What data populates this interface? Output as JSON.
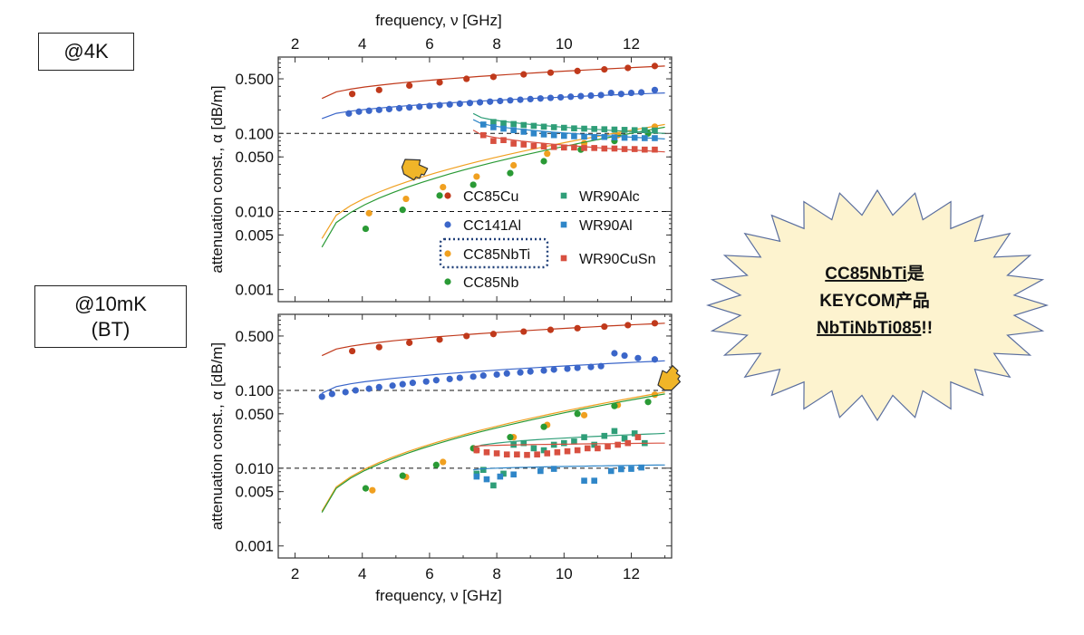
{
  "labels": {
    "top_condition": "@4K",
    "bottom_condition_line1": "@10mK",
    "bottom_condition_line2": "(BT)"
  },
  "callout": {
    "line1_product": "CC85NbTi",
    "line1_suffix": "是",
    "line2": "KEYCOM产品",
    "line3_part": "NbTiNbTi085",
    "line3_suffix": "!!"
  },
  "colors": {
    "CC85Cu": "#c0391b",
    "CC141Al": "#3b66c9",
    "CC85NbTi": "#f0a020",
    "CC85Nb": "#2a9a35",
    "WR90Alc": "#2f9e78",
    "WR90Al": "#2f86c8",
    "WR90CuSn": "#d85040",
    "burst_fill": "#fdf3cf",
    "burst_stroke": "#5a6e9e",
    "pointer_fill": "#f0b528"
  },
  "chart_data": [
    {
      "type": "scatter",
      "panel": "@4K",
      "xlabel_top": "frequency, ν [GHz]",
      "ylabel": "attenuation const., α [dB/m]",
      "x_ticks": [
        "2",
        "4",
        "6",
        "8",
        "10",
        "12"
      ],
      "y_ticks": [
        "0.001",
        "0.005",
        "0.010",
        "0.050",
        "0.100",
        "0.500"
      ],
      "xlim": [
        1.5,
        13.2
      ],
      "ylim": [
        0.0007,
        0.95
      ],
      "y_scale": "log",
      "reference_lines": [
        0.1,
        0.01
      ],
      "legend": {
        "placement": "inside-lower-center",
        "entries": [
          "CC85Cu",
          "CC141Al",
          "CC85NbTi",
          "CC85Nb",
          "WR90Alc",
          "WR90Al",
          "WR90CuSn"
        ],
        "highlighted": "CC85NbTi"
      },
      "series": [
        {
          "name": "CC85Cu",
          "marker": "circle",
          "x": [
            3.7,
            4.5,
            5.4,
            6.3,
            7.1,
            7.9,
            8.8,
            9.6,
            10.4,
            11.2,
            11.9,
            12.7
          ],
          "y": [
            0.32,
            0.36,
            0.41,
            0.45,
            0.5,
            0.53,
            0.57,
            0.6,
            0.63,
            0.66,
            0.69,
            0.73
          ],
          "fit_x": [
            2.8,
            13.0
          ],
          "fit_y": [
            0.28,
            0.73
          ]
        },
        {
          "name": "CC141Al",
          "marker": "circle",
          "x": [
            3.6,
            3.9,
            4.2,
            4.5,
            4.8,
            5.1,
            5.4,
            5.7,
            6.0,
            6.3,
            6.6,
            6.9,
            7.2,
            7.5,
            7.8,
            8.1,
            8.4,
            8.7,
            9.0,
            9.3,
            9.6,
            9.9,
            10.2,
            10.5,
            10.8,
            11.1,
            11.4,
            11.7,
            12.0,
            12.3,
            12.7
          ],
          "y": [
            0.18,
            0.19,
            0.195,
            0.2,
            0.205,
            0.21,
            0.215,
            0.22,
            0.225,
            0.23,
            0.235,
            0.24,
            0.245,
            0.25,
            0.255,
            0.26,
            0.265,
            0.27,
            0.275,
            0.28,
            0.285,
            0.29,
            0.295,
            0.3,
            0.305,
            0.31,
            0.33,
            0.32,
            0.33,
            0.335,
            0.36
          ],
          "fit_x": [
            2.8,
            13.0
          ],
          "fit_y": [
            0.155,
            0.33
          ]
        },
        {
          "name": "CC85NbTi",
          "marker": "circle",
          "x": [
            4.2,
            5.3,
            6.4,
            7.4,
            8.5,
            9.5,
            10.6,
            11.6,
            12.7
          ],
          "y": [
            0.0095,
            0.0145,
            0.0205,
            0.028,
            0.039,
            0.055,
            0.075,
            0.095,
            0.122
          ],
          "fit_x": [
            2.8,
            13.0
          ],
          "fit_y": [
            0.0045,
            0.13
          ]
        },
        {
          "name": "CC85Nb",
          "marker": "circle",
          "x": [
            4.1,
            5.2,
            6.3,
            7.3,
            8.4,
            9.4,
            10.5,
            11.5,
            12.5
          ],
          "y": [
            0.006,
            0.0105,
            0.016,
            0.022,
            0.031,
            0.044,
            0.062,
            0.08,
            0.1
          ],
          "fit_x": [
            2.8,
            13.0
          ],
          "fit_y": [
            0.0035,
            0.12
          ]
        },
        {
          "name": "WR90Alc",
          "marker": "square",
          "x": [
            7.9,
            8.2,
            8.5,
            8.8,
            9.1,
            9.4,
            9.7,
            10.0,
            10.3,
            10.6,
            10.9,
            11.2,
            11.5,
            11.8,
            12.1,
            12.4,
            12.7
          ],
          "y": [
            0.14,
            0.135,
            0.132,
            0.128,
            0.125,
            0.122,
            0.12,
            0.118,
            0.116,
            0.115,
            0.114,
            0.113,
            0.112,
            0.111,
            0.11,
            0.11,
            0.109
          ],
          "fit_x": [
            7.3,
            13.0
          ],
          "fit_y": [
            0.18,
            0.1
          ]
        },
        {
          "name": "WR90Al",
          "marker": "square",
          "x": [
            7.6,
            7.9,
            8.2,
            8.5,
            8.8,
            9.1,
            9.4,
            9.7,
            10.0,
            10.3,
            10.6,
            10.9,
            11.2,
            11.5,
            11.8,
            12.1,
            12.4,
            12.7
          ],
          "y": [
            0.13,
            0.12,
            0.115,
            0.11,
            0.105,
            0.1,
            0.097,
            0.095,
            0.093,
            0.092,
            0.091,
            0.09,
            0.09,
            0.089,
            0.088,
            0.088,
            0.087,
            0.087
          ],
          "fit_x": [
            7.3,
            13.0
          ],
          "fit_y": [
            0.15,
            0.085
          ]
        },
        {
          "name": "WR90CuSn",
          "marker": "square",
          "x": [
            7.6,
            7.9,
            8.2,
            8.5,
            8.8,
            9.1,
            9.4,
            9.7,
            10.0,
            10.3,
            10.6,
            10.9,
            11.2,
            11.5,
            11.8,
            12.1,
            12.4,
            12.7
          ],
          "y": [
            0.095,
            0.08,
            0.082,
            0.074,
            0.072,
            0.069,
            0.068,
            0.067,
            0.066,
            0.066,
            0.065,
            0.065,
            0.064,
            0.064,
            0.063,
            0.063,
            0.062,
            0.062
          ],
          "fit_x": [
            7.3,
            13.0
          ],
          "fit_y": [
            0.11,
            0.058
          ]
        }
      ]
    },
    {
      "type": "scatter",
      "panel": "@10mK (BT)",
      "xlabel": "frequency, ν [GHz]",
      "ylabel": "attenuation const., α [dB/m]",
      "x_ticks": [
        "2",
        "4",
        "6",
        "8",
        "10",
        "12"
      ],
      "y_ticks": [
        "0.001",
        "0.005",
        "0.010",
        "0.050",
        "0.100",
        "0.500"
      ],
      "xlim": [
        1.5,
        13.2
      ],
      "ylim": [
        0.0007,
        0.95
      ],
      "y_scale": "log",
      "reference_lines": [
        0.1,
        0.01
      ],
      "series": [
        {
          "name": "CC85Cu",
          "marker": "circle",
          "x": [
            3.7,
            4.5,
            5.4,
            6.3,
            7.1,
            7.9,
            8.8,
            9.6,
            10.4,
            11.2,
            11.9,
            12.7
          ],
          "y": [
            0.32,
            0.36,
            0.41,
            0.45,
            0.5,
            0.53,
            0.57,
            0.6,
            0.63,
            0.66,
            0.69,
            0.73
          ],
          "fit_x": [
            2.8,
            13.0
          ],
          "fit_y": [
            0.28,
            0.73
          ]
        },
        {
          "name": "CC141Al",
          "marker": "circle",
          "x": [
            2.8,
            3.1,
            3.5,
            3.8,
            4.2,
            4.5,
            4.9,
            5.2,
            5.5,
            5.9,
            6.2,
            6.6,
            6.9,
            7.3,
            7.6,
            8.0,
            8.3,
            8.7,
            9.0,
            9.4,
            9.7,
            10.1,
            10.4,
            10.8,
            11.1,
            11.5,
            11.8,
            12.2,
            12.7
          ],
          "y": [
            0.083,
            0.09,
            0.095,
            0.1,
            0.105,
            0.11,
            0.115,
            0.12,
            0.125,
            0.13,
            0.135,
            0.14,
            0.145,
            0.15,
            0.155,
            0.16,
            0.165,
            0.17,
            0.175,
            0.18,
            0.185,
            0.19,
            0.195,
            0.2,
            0.205,
            0.3,
            0.28,
            0.26,
            0.25
          ],
          "fit_x": [
            2.8,
            13.0
          ],
          "fit_y": [
            0.092,
            0.24
          ]
        },
        {
          "name": "CC85NbTi",
          "marker": "circle",
          "x": [
            4.3,
            5.3,
            6.4,
            7.4,
            8.5,
            9.5,
            10.6,
            11.6,
            12.7
          ],
          "y": [
            0.0052,
            0.0077,
            0.012,
            0.017,
            0.025,
            0.036,
            0.048,
            0.065,
            0.088
          ],
          "fit_x": [
            2.8,
            13.0
          ],
          "fit_y": [
            0.0028,
            0.095
          ]
        },
        {
          "name": "CC85Nb",
          "marker": "circle",
          "x": [
            4.1,
            5.2,
            6.2,
            7.3,
            8.4,
            9.4,
            10.4,
            11.5,
            12.5
          ],
          "y": [
            0.0055,
            0.008,
            0.011,
            0.018,
            0.025,
            0.034,
            0.05,
            0.063,
            0.071
          ],
          "fit_x": [
            2.8,
            13.0
          ],
          "fit_y": [
            0.0027,
            0.09
          ]
        },
        {
          "name": "WR90Alc",
          "marker": "square",
          "x": [
            7.4,
            7.6,
            7.9,
            8.2,
            8.5,
            8.8,
            9.1,
            9.4,
            9.7,
            10.0,
            10.3,
            10.6,
            10.9,
            11.2,
            11.5,
            11.8,
            12.1,
            12.4
          ],
          "y": [
            0.0085,
            0.0095,
            0.006,
            0.0085,
            0.02,
            0.021,
            0.018,
            0.017,
            0.02,
            0.021,
            0.022,
            0.025,
            0.02,
            0.026,
            0.03,
            0.024,
            0.028,
            0.021
          ],
          "fit_x": [
            7.3,
            13.0
          ],
          "fit_y": [
            0.018,
            0.028
          ]
        },
        {
          "name": "WR90Al",
          "marker": "square",
          "x": [
            7.4,
            7.7,
            8.1,
            8.5,
            9.3,
            9.7,
            10.6,
            10.9,
            11.4,
            11.7,
            12.0,
            12.3
          ],
          "y": [
            0.0078,
            0.0072,
            0.0078,
            0.0083,
            0.0092,
            0.0098,
            0.0069,
            0.0069,
            0.0092,
            0.0097,
            0.0098,
            0.0102
          ],
          "fit_x": [
            7.3,
            13.0
          ],
          "fit_y": [
            0.0095,
            0.011
          ]
        },
        {
          "name": "WR90CuSn",
          "marker": "square",
          "x": [
            7.4,
            7.7,
            8.0,
            8.3,
            8.6,
            8.9,
            9.2,
            9.5,
            9.8,
            10.1,
            10.4,
            10.7,
            11.0,
            11.3,
            11.6,
            11.9,
            12.2
          ],
          "y": [
            0.017,
            0.016,
            0.0155,
            0.015,
            0.015,
            0.0148,
            0.015,
            0.0155,
            0.016,
            0.0165,
            0.017,
            0.018,
            0.018,
            0.019,
            0.02,
            0.021,
            0.025
          ],
          "fit_x": [
            7.3,
            13.0
          ],
          "fit_y": [
            0.019,
            0.021
          ]
        }
      ]
    }
  ]
}
